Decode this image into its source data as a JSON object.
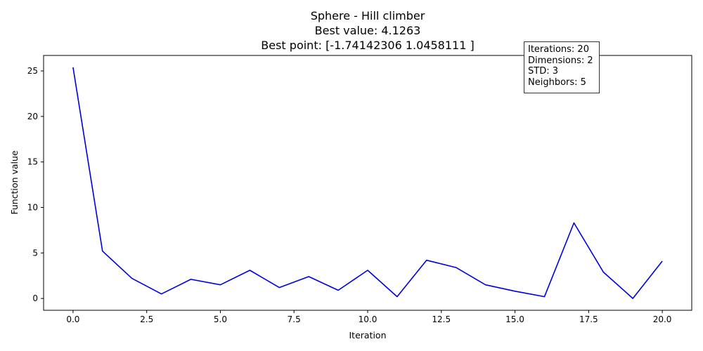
{
  "chart_data": {
    "type": "line",
    "title_lines": [
      "Sphere - Hill climber",
      "Best value: 4.1263",
      "Best point: [-1.74142306  1.0458111 ]"
    ],
    "xlabel": "Iteration",
    "ylabel": "Function value",
    "xlim": [
      -1.0,
      21.0
    ],
    "ylim": [
      -1.3,
      26.7
    ],
    "x_ticks": [
      0.0,
      2.5,
      5.0,
      7.5,
      10.0,
      12.5,
      15.0,
      17.5,
      20.0
    ],
    "x_tick_labels": [
      "0.0",
      "2.5",
      "5.0",
      "7.5",
      "10.0",
      "12.5",
      "15.0",
      "17.5",
      "20.0"
    ],
    "y_ticks": [
      0,
      5,
      10,
      15,
      20,
      25
    ],
    "y_tick_labels": [
      "0",
      "5",
      "10",
      "15",
      "20",
      "25"
    ],
    "grid": false,
    "series": [
      {
        "color": "#0000dd",
        "x": [
          0,
          1,
          2,
          3,
          4,
          5,
          6,
          7,
          8,
          9,
          10,
          11,
          12,
          13,
          14,
          15,
          16,
          17,
          18,
          19,
          20
        ],
        "y": [
          25.4,
          5.2,
          2.2,
          0.5,
          2.1,
          1.5,
          3.1,
          1.2,
          2.4,
          0.9,
          3.1,
          0.2,
          4.2,
          3.4,
          1.5,
          0.8,
          0.2,
          8.3,
          2.9,
          0.0,
          4.1
        ]
      }
    ],
    "info_box": {
      "position": "top-right",
      "lines": [
        "Iterations: 20",
        "Dimensions: 2",
        "STD: 3",
        "Neighbors: 5"
      ]
    }
  }
}
